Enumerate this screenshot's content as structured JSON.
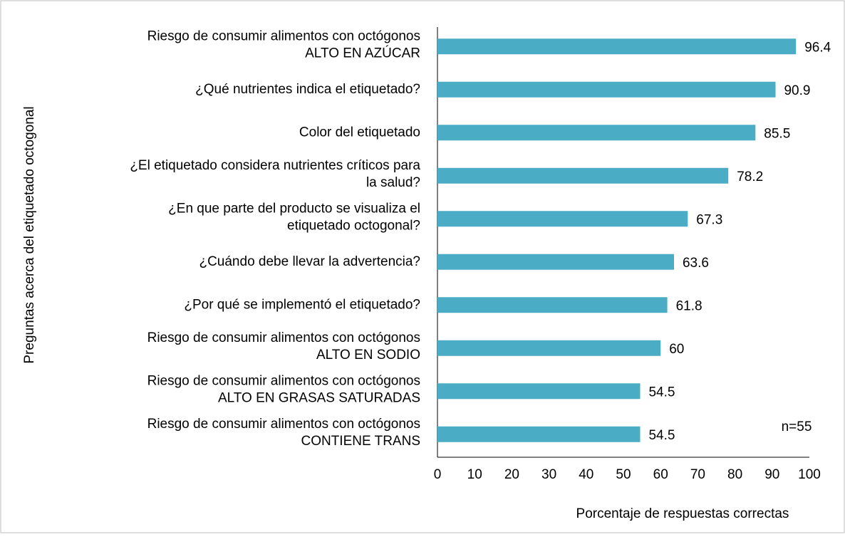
{
  "chart_data": {
    "type": "bar",
    "orientation": "horizontal",
    "categories": [
      [
        "Riesgo de consumir alimentos con octógonos",
        "ALTO EN AZÚCAR"
      ],
      [
        "¿Qué nutrientes indica el etiquetado?"
      ],
      [
        "Color del etiquetado"
      ],
      [
        "¿El etiquetado considera nutrientes críticos para",
        "la salud?"
      ],
      [
        "¿En que parte del producto se visualiza el",
        "etiquetado octogonal?"
      ],
      [
        "¿Cuándo debe llevar la advertencia?"
      ],
      [
        "¿Por qué se implementó el etiquetado?"
      ],
      [
        "Riesgo de consumir alimentos con octógonos",
        "ALTO EN SODIO"
      ],
      [
        "Riesgo de consumir alimentos con octógonos",
        "ALTO EN GRASAS SATURADAS"
      ],
      [
        "Riesgo de consumir alimentos con octógonos",
        "CONTIENE TRANS"
      ]
    ],
    "values": [
      96.4,
      90.9,
      85.5,
      78.2,
      67.3,
      63.6,
      61.8,
      60,
      54.5,
      54.5
    ],
    "color": "#4bacc6",
    "xlim": [
      0,
      100
    ],
    "xticks": [
      0,
      10,
      20,
      30,
      40,
      50,
      60,
      70,
      80,
      90,
      100
    ],
    "xlabel": "Porcentaje de respuestas correctas",
    "ylabel": "Preguntas acerca del etiquetado octogonal",
    "annotation": "n=55",
    "grid": false
  }
}
